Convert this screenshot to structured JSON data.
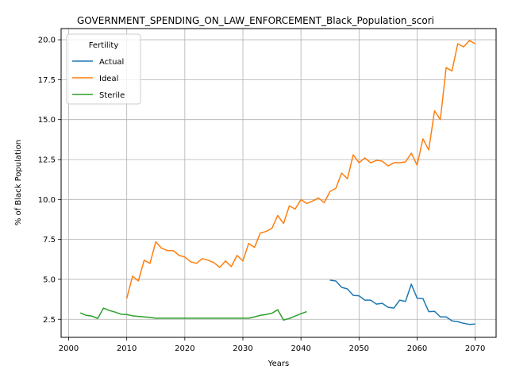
{
  "chart_data": {
    "type": "line",
    "title": "GOVERNMENT_SPENDING_ON_LAW_ENFORCEMENT_Black_Population_scori",
    "xlabel": "Years",
    "ylabel": "% of Black Population",
    "xlim": [
      1998.7,
      2073.6
    ],
    "ylim": [
      1.37,
      20.7
    ],
    "xticks": [
      2000,
      2010,
      2020,
      2030,
      2040,
      2050,
      2060,
      2070
    ],
    "yticks": [
      2.5,
      5.0,
      7.5,
      10.0,
      12.5,
      15.0,
      17.5,
      20.0
    ],
    "grid": true,
    "legend": {
      "title": "Fertility",
      "position": "top-left"
    },
    "series": [
      {
        "name": "Actual",
        "color": "#1f77b4",
        "points": [
          [
            2045,
            4.95
          ],
          [
            2046,
            4.9
          ],
          [
            2047,
            4.5
          ],
          [
            2048,
            4.4
          ],
          [
            2049,
            4.0
          ],
          [
            2050,
            3.97
          ],
          [
            2051,
            3.7
          ],
          [
            2052,
            3.7
          ],
          [
            2053,
            3.45
          ],
          [
            2054,
            3.5
          ],
          [
            2055,
            3.25
          ],
          [
            2056,
            3.2
          ],
          [
            2057,
            3.7
          ],
          [
            2058,
            3.62
          ],
          [
            2059,
            4.7
          ],
          [
            2060,
            3.82
          ],
          [
            2061,
            3.8
          ],
          [
            2062,
            2.98
          ],
          [
            2063,
            3.0
          ],
          [
            2064,
            2.65
          ],
          [
            2065,
            2.65
          ],
          [
            2066,
            2.4
          ],
          [
            2067,
            2.35
          ],
          [
            2068,
            2.25
          ],
          [
            2069,
            2.18
          ],
          [
            2070,
            2.2
          ]
        ]
      },
      {
        "name": "Ideal",
        "color": "#ff7f0e",
        "points": [
          [
            2010,
            3.8
          ],
          [
            2011,
            5.2
          ],
          [
            2012,
            4.9
          ],
          [
            2013,
            6.2
          ],
          [
            2014,
            6.0
          ],
          [
            2015,
            7.35
          ],
          [
            2016,
            6.95
          ],
          [
            2017,
            6.8
          ],
          [
            2018,
            6.8
          ],
          [
            2019,
            6.5
          ],
          [
            2020,
            6.4
          ],
          [
            2021,
            6.1
          ],
          [
            2022,
            6.0
          ],
          [
            2023,
            6.3
          ],
          [
            2024,
            6.2
          ],
          [
            2025,
            6.05
          ],
          [
            2026,
            5.75
          ],
          [
            2027,
            6.15
          ],
          [
            2028,
            5.8
          ],
          [
            2029,
            6.5
          ],
          [
            2030,
            6.15
          ],
          [
            2031,
            7.25
          ],
          [
            2032,
            7.0
          ],
          [
            2033,
            7.9
          ],
          [
            2034,
            8.0
          ],
          [
            2035,
            8.2
          ],
          [
            2036,
            9.0
          ],
          [
            2037,
            8.5
          ],
          [
            2038,
            9.6
          ],
          [
            2039,
            9.4
          ],
          [
            2040,
            10.0
          ],
          [
            2041,
            9.75
          ],
          [
            2042,
            9.9
          ],
          [
            2043,
            10.1
          ],
          [
            2044,
            9.8
          ],
          [
            2045,
            10.5
          ],
          [
            2046,
            10.7
          ],
          [
            2047,
            11.65
          ],
          [
            2048,
            11.3
          ],
          [
            2049,
            12.8
          ],
          [
            2050,
            12.3
          ],
          [
            2051,
            12.6
          ],
          [
            2052,
            12.3
          ],
          [
            2053,
            12.45
          ],
          [
            2054,
            12.4
          ],
          [
            2055,
            12.1
          ],
          [
            2056,
            12.3
          ],
          [
            2057,
            12.3
          ],
          [
            2058,
            12.35
          ],
          [
            2059,
            12.9
          ],
          [
            2060,
            12.15
          ],
          [
            2061,
            13.8
          ],
          [
            2062,
            13.1
          ],
          [
            2063,
            15.55
          ],
          [
            2064,
            15.0
          ],
          [
            2065,
            18.25
          ],
          [
            2066,
            18.05
          ],
          [
            2067,
            19.75
          ],
          [
            2068,
            19.55
          ],
          [
            2069,
            19.95
          ],
          [
            2070,
            19.75
          ]
        ]
      },
      {
        "name": "Sterile",
        "color": "#2ca02c",
        "points": [
          [
            2002,
            2.9
          ],
          [
            2003,
            2.75
          ],
          [
            2004,
            2.7
          ],
          [
            2005,
            2.55
          ],
          [
            2006,
            3.2
          ],
          [
            2007,
            3.05
          ],
          [
            2008,
            2.95
          ],
          [
            2009,
            2.82
          ],
          [
            2010,
            2.8
          ],
          [
            2011,
            2.72
          ],
          [
            2012,
            2.68
          ],
          [
            2013,
            2.65
          ],
          [
            2014,
            2.62
          ],
          [
            2015,
            2.57
          ],
          [
            2016,
            2.57
          ],
          [
            2017,
            2.57
          ],
          [
            2018,
            2.57
          ],
          [
            2019,
            2.57
          ],
          [
            2020,
            2.57
          ],
          [
            2021,
            2.57
          ],
          [
            2022,
            2.57
          ],
          [
            2023,
            2.57
          ],
          [
            2024,
            2.57
          ],
          [
            2025,
            2.57
          ],
          [
            2026,
            2.57
          ],
          [
            2027,
            2.57
          ],
          [
            2028,
            2.57
          ],
          [
            2029,
            2.57
          ],
          [
            2030,
            2.57
          ],
          [
            2031,
            2.57
          ],
          [
            2032,
            2.65
          ],
          [
            2033,
            2.75
          ],
          [
            2034,
            2.8
          ],
          [
            2035,
            2.88
          ],
          [
            2036,
            3.1
          ],
          [
            2037,
            2.45
          ],
          [
            2038,
            2.55
          ],
          [
            2039,
            2.7
          ],
          [
            2040,
            2.85
          ],
          [
            2041,
            2.98
          ]
        ]
      }
    ]
  }
}
